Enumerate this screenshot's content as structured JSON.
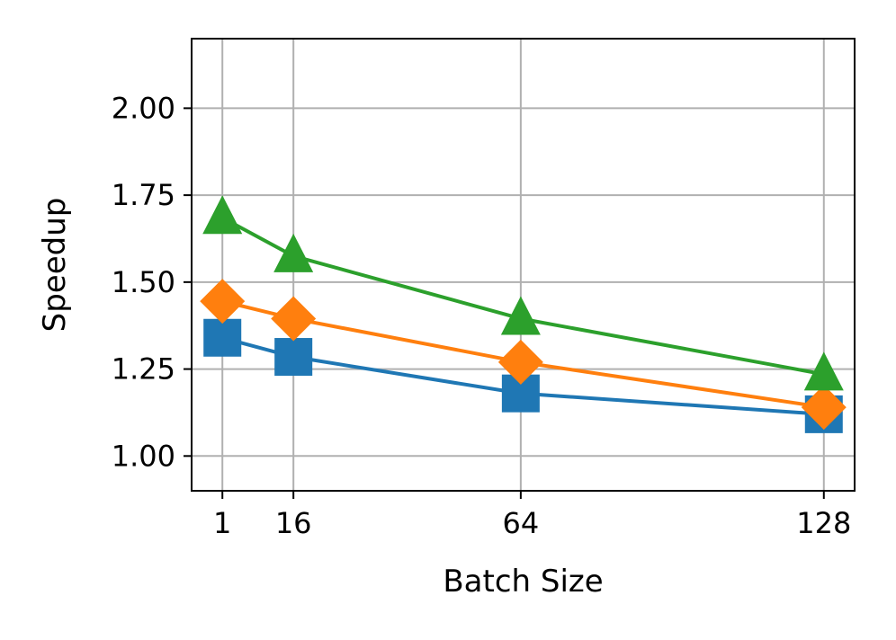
{
  "chart_data": {
    "type": "line",
    "title": "",
    "xlabel": "Batch Size",
    "ylabel": "Speedup",
    "x": [
      1,
      16,
      64,
      128
    ],
    "xticks": [
      1,
      16,
      64,
      128
    ],
    "xtick_labels": [
      "1",
      "16",
      "64",
      "128"
    ],
    "xlim": [
      -5.5,
      134.5
    ],
    "ylim": [
      0.9,
      2.2
    ],
    "yticks": [
      1.0,
      1.25,
      1.5,
      1.75,
      2.0
    ],
    "ytick_labels": [
      "1.00",
      "1.25",
      "1.50",
      "1.75",
      "2.00"
    ],
    "grid": true,
    "legend": "none",
    "series": [
      {
        "color": "#1f77b4",
        "marker": "square",
        "values": [
          1.34,
          1.285,
          1.18,
          1.12
        ]
      },
      {
        "color": "#ff7f0e",
        "marker": "diamond",
        "values": [
          1.445,
          1.395,
          1.27,
          1.14
        ]
      },
      {
        "color": "#2ca02c",
        "marker": "triangle",
        "values": [
          1.685,
          1.575,
          1.395,
          1.235
        ]
      }
    ]
  }
}
